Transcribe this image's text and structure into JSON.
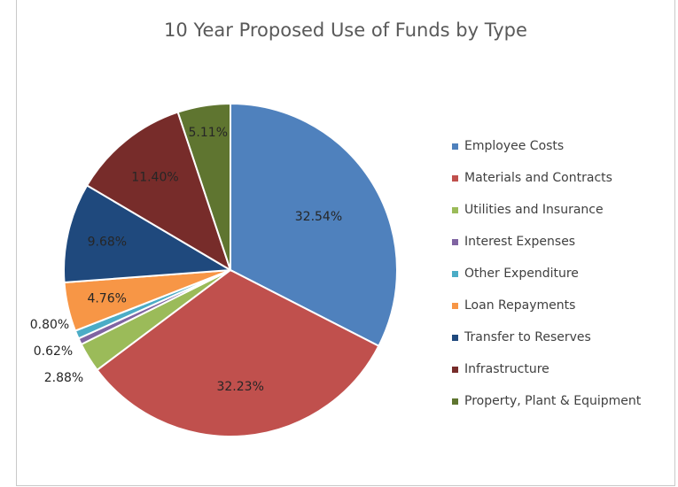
{
  "chart_data": {
    "type": "pie",
    "title": "10 Year Proposed Use of Funds by Type",
    "legend_position": "right",
    "slices": [
      {
        "label": "Employee Costs",
        "value": 32.54,
        "display": "32.54%",
        "color": "#4f81bd"
      },
      {
        "label": "Materials and Contracts",
        "value": 32.23,
        "display": "32.23%",
        "color": "#c0504d"
      },
      {
        "label": "Utilities and Insurance",
        "value": 2.88,
        "display": "2.88%",
        "color": "#9bbb59"
      },
      {
        "label": "Interest Expenses",
        "value": 0.62,
        "display": "0.62%",
        "color": "#8064a2"
      },
      {
        "label": "Other Expenditure",
        "value": 0.8,
        "display": "0.80%",
        "color": "#4bacc6"
      },
      {
        "label": "Loan Repayments",
        "value": 4.76,
        "display": "4.76%",
        "color": "#f79646"
      },
      {
        "label": "Transfer to Reserves",
        "value": 9.68,
        "display": "9.68%",
        "color": "#1f497d"
      },
      {
        "label": "Infrastructure",
        "value": 11.4,
        "display": "11.40%",
        "color": "#772c2a"
      },
      {
        "label": "Property, Plant & Equipment",
        "value": 5.11,
        "display": "5.11%",
        "color": "#5f7530"
      }
    ]
  }
}
